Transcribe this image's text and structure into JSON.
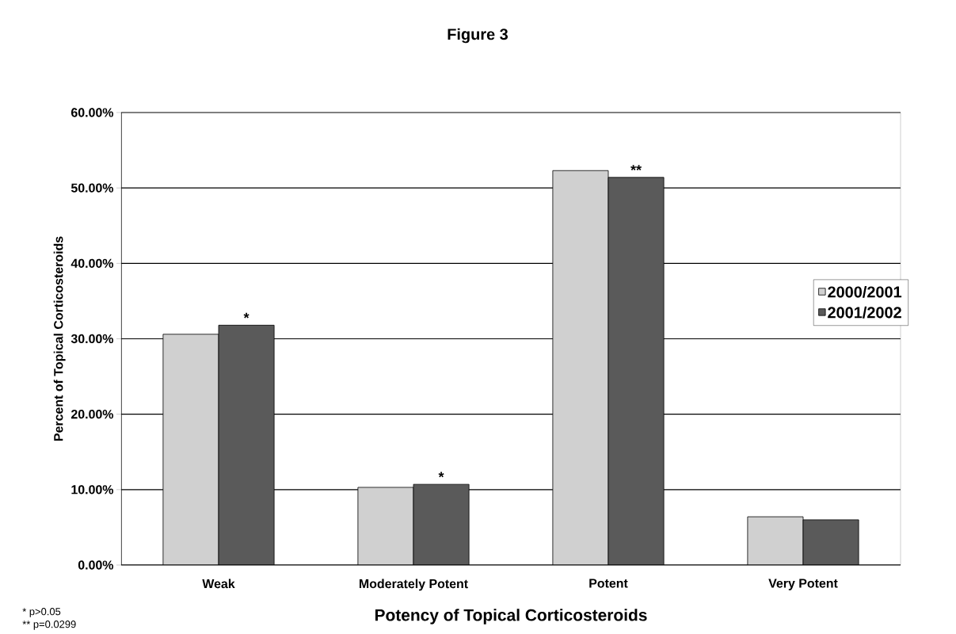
{
  "chart_data": {
    "type": "bar",
    "title": "Figure 3",
    "xlabel": "Potency of Topical Corticosteroids",
    "ylabel": "Percent of Topical Corticosteroids",
    "categories": [
      "Weak",
      "Moderately Potent",
      "Potent",
      "Very Potent"
    ],
    "series": [
      {
        "name": "2000/2001",
        "color": "#d0d0d0",
        "values": [
          30.6,
          10.3,
          52.3,
          6.4
        ]
      },
      {
        "name": "2001/2002",
        "color": "#5a5a5a",
        "values": [
          31.8,
          10.7,
          51.4,
          6.0
        ]
      }
    ],
    "ylim": [
      0,
      60
    ],
    "yticks": [
      {
        "value": 0,
        "label": "0.00%"
      },
      {
        "value": 10,
        "label": "10.00%"
      },
      {
        "value": 20,
        "label": "20.00%"
      },
      {
        "value": 30,
        "label": "30.00%"
      },
      {
        "value": 40,
        "label": "40.00%"
      },
      {
        "value": 50,
        "label": "50.00%"
      },
      {
        "value": 60,
        "label": "60.00%"
      }
    ],
    "grid": "y",
    "legend": "right",
    "annotations": [
      {
        "text": "*",
        "x": "Weak",
        "y": 31.8
      },
      {
        "text": "*",
        "x": "Moderately Potent",
        "y": 10.7
      },
      {
        "text": "**",
        "x": "Potent",
        "y": 51.4
      },
      "* p>0.05",
      "** p=0.0299"
    ]
  }
}
